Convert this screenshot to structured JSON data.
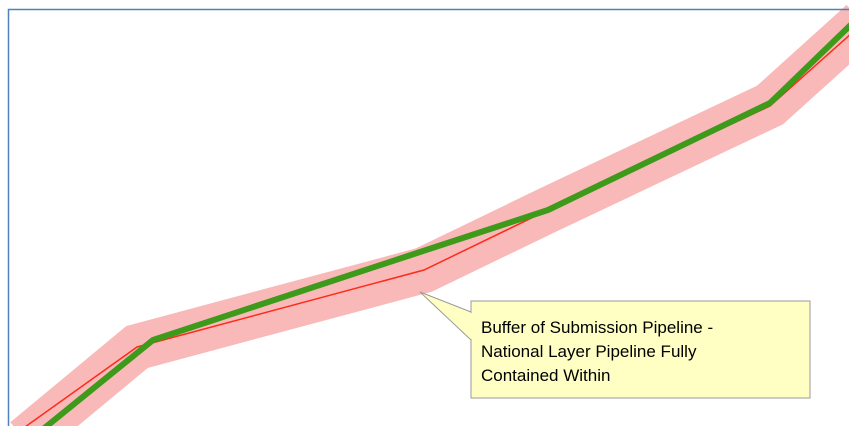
{
  "callout": {
    "lines": [
      "Buffer of Submission Pipeline -",
      "National Layer Pipeline Fully",
      "Contained Within"
    ]
  }
}
